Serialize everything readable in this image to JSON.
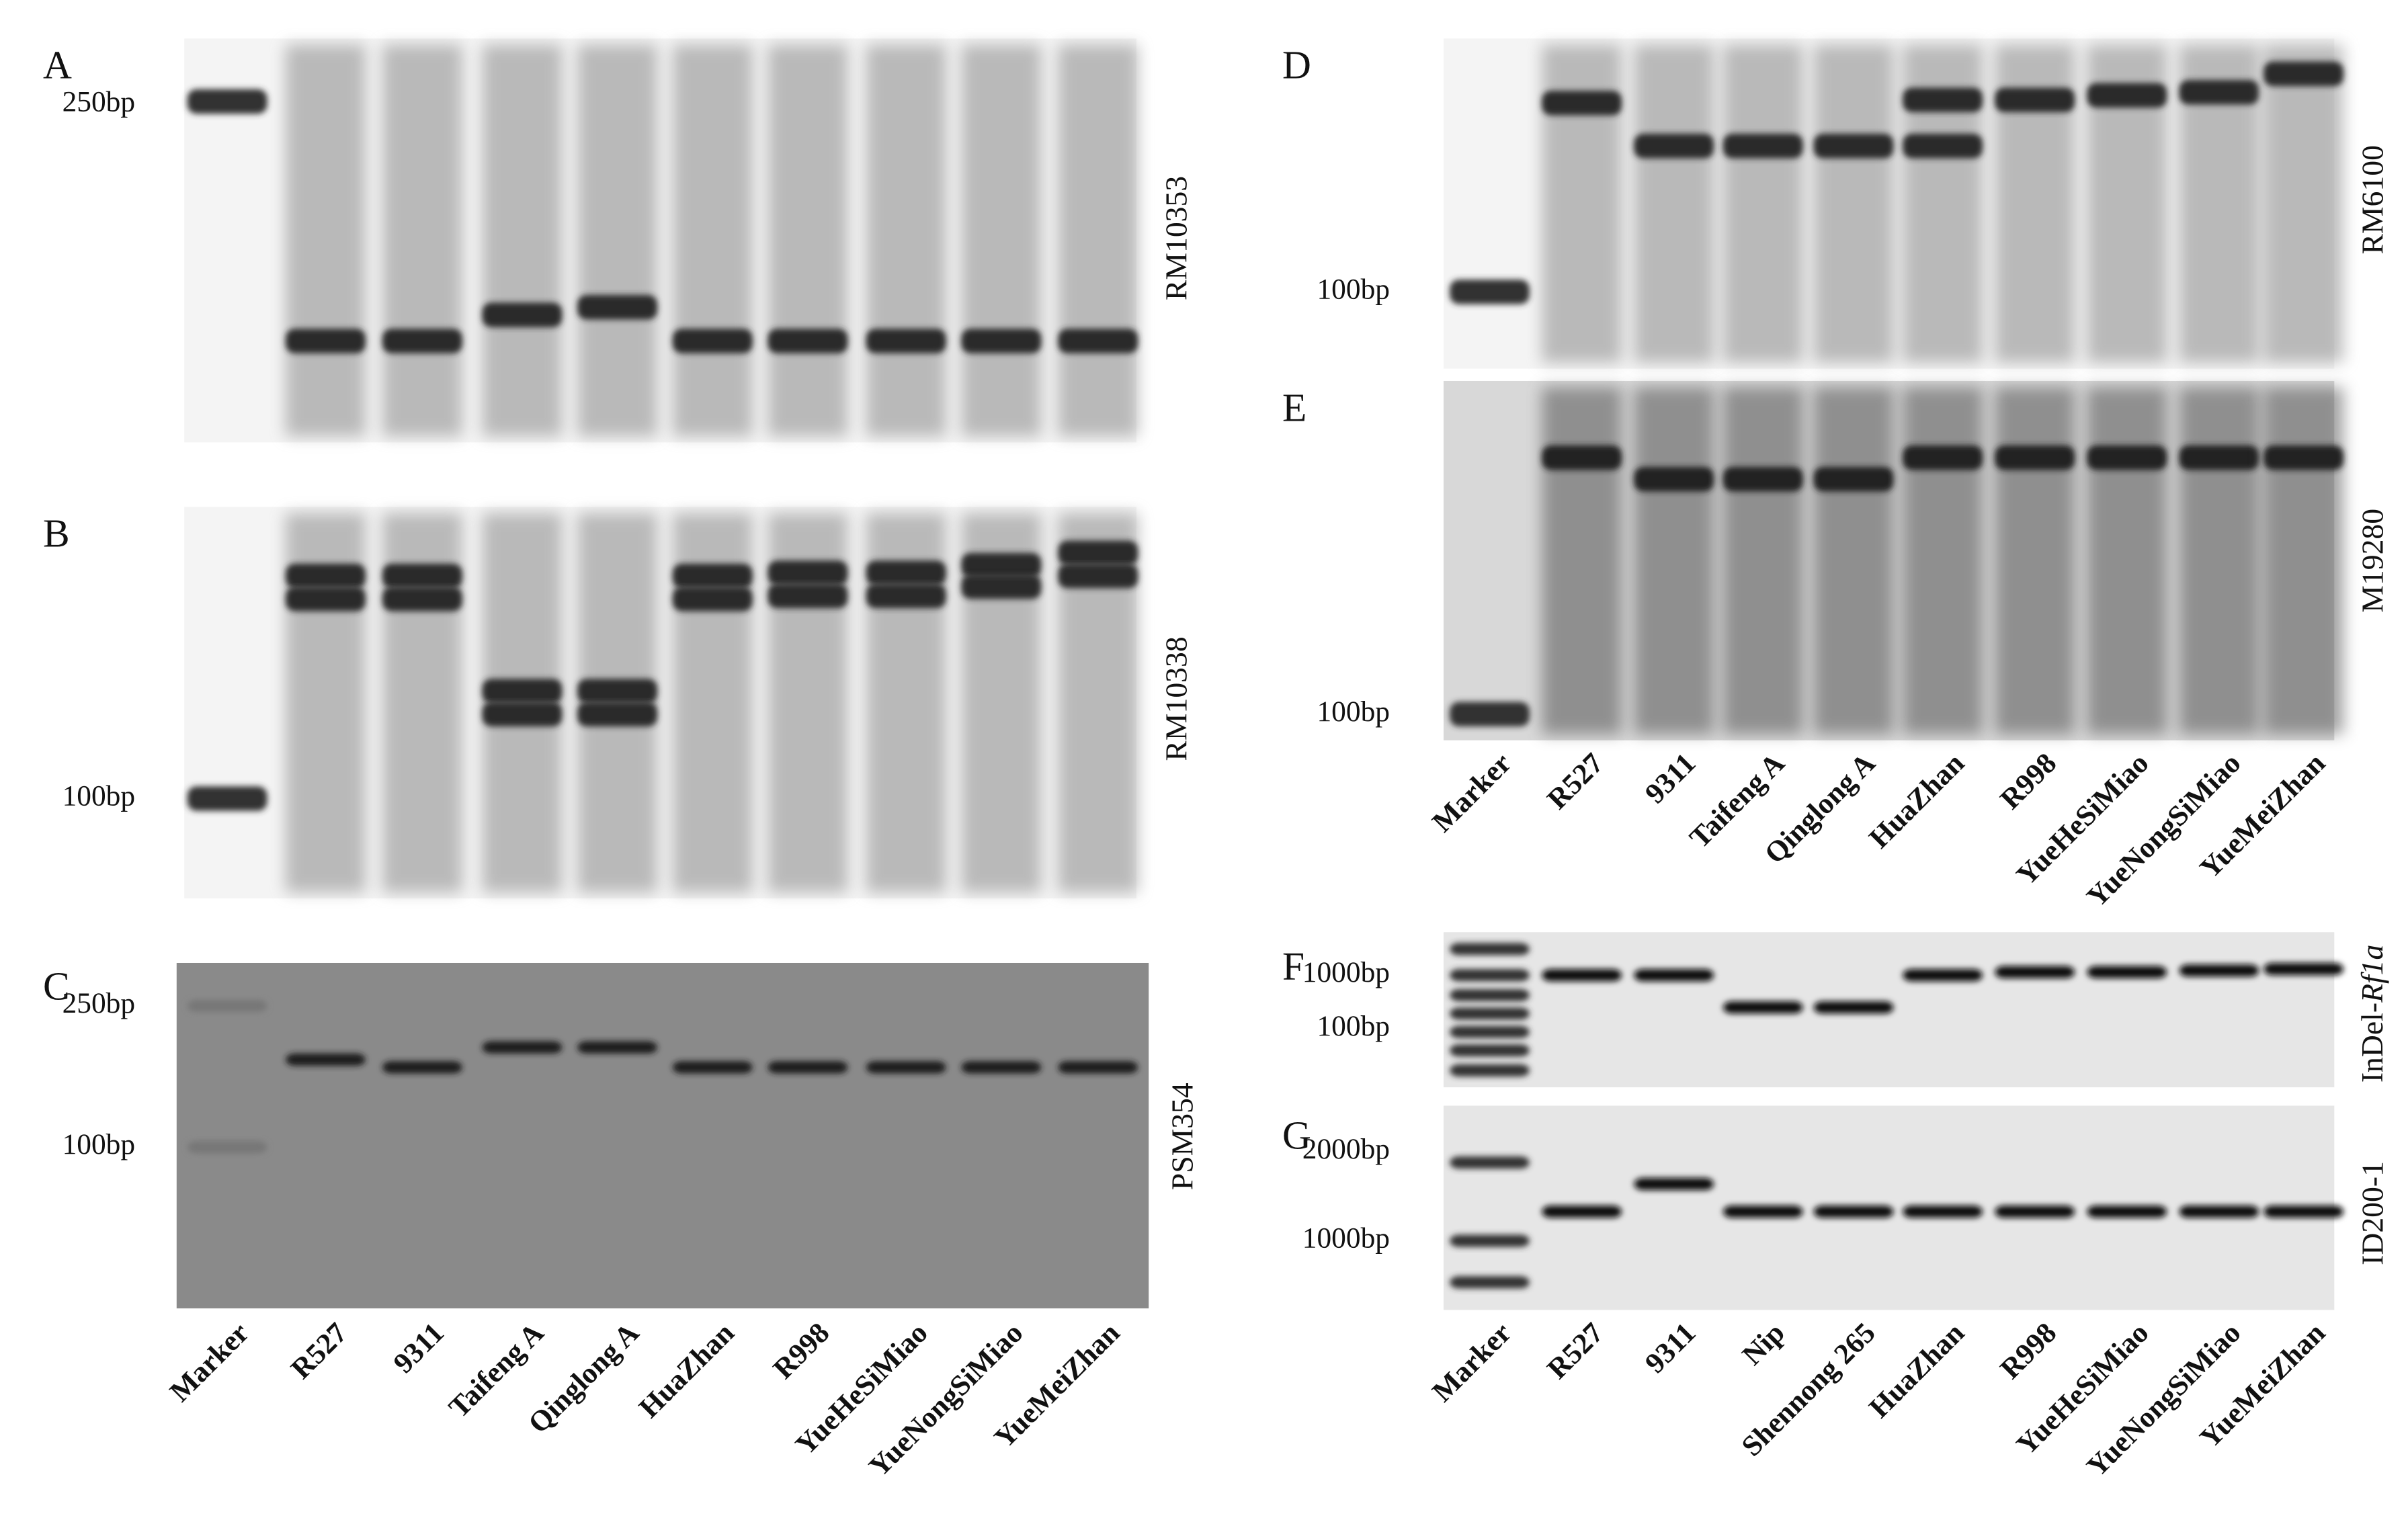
{
  "panels": [
    {
      "letter": "A",
      "marker": "RM10353",
      "sizes": [
        "250bp"
      ]
    },
    {
      "letter": "B",
      "marker": "RM10338",
      "sizes": [
        "100bp"
      ]
    },
    {
      "letter": "C",
      "marker": "PSM354",
      "sizes": [
        "250bp",
        "100bp"
      ]
    },
    {
      "letter": "D",
      "marker": "RM6100",
      "sizes": [
        "100bp"
      ]
    },
    {
      "letter": "E",
      "marker": "M19280",
      "sizes": [
        "100bp"
      ]
    },
    {
      "letter": "F",
      "marker": {
        "prefix": "InDel-",
        "gene": "Rf1a"
      },
      "sizes": [
        "1000bp",
        "100bp"
      ]
    },
    {
      "letter": "G",
      "marker": "ID200-1",
      "sizes": [
        "2000bp",
        "1000bp"
      ]
    }
  ],
  "lane_labels": {
    "left": [
      "Marker",
      "R527",
      "9311",
      "Taifeng A",
      "Qinglong A",
      "HuaZhan",
      "R998",
      "YueHeSiMiao",
      "YueNongSiMiao",
      "YueMeiZhan"
    ],
    "right_top": [
      "Marker",
      "R527",
      "9311",
      "Taifeng A",
      "Qinglong A",
      "HuaZhan",
      "R998",
      "YueHeSiMiao",
      "YueNongSiMiao",
      "YueMeiZhan"
    ],
    "right_bottom": [
      "Marker",
      "R527",
      "9311",
      "Nip",
      "Shennong 265",
      "HuaZhan",
      "R998",
      "YueHeSiMiao",
      "YueNongSiMiao",
      "YueMeiZhan"
    ]
  }
}
